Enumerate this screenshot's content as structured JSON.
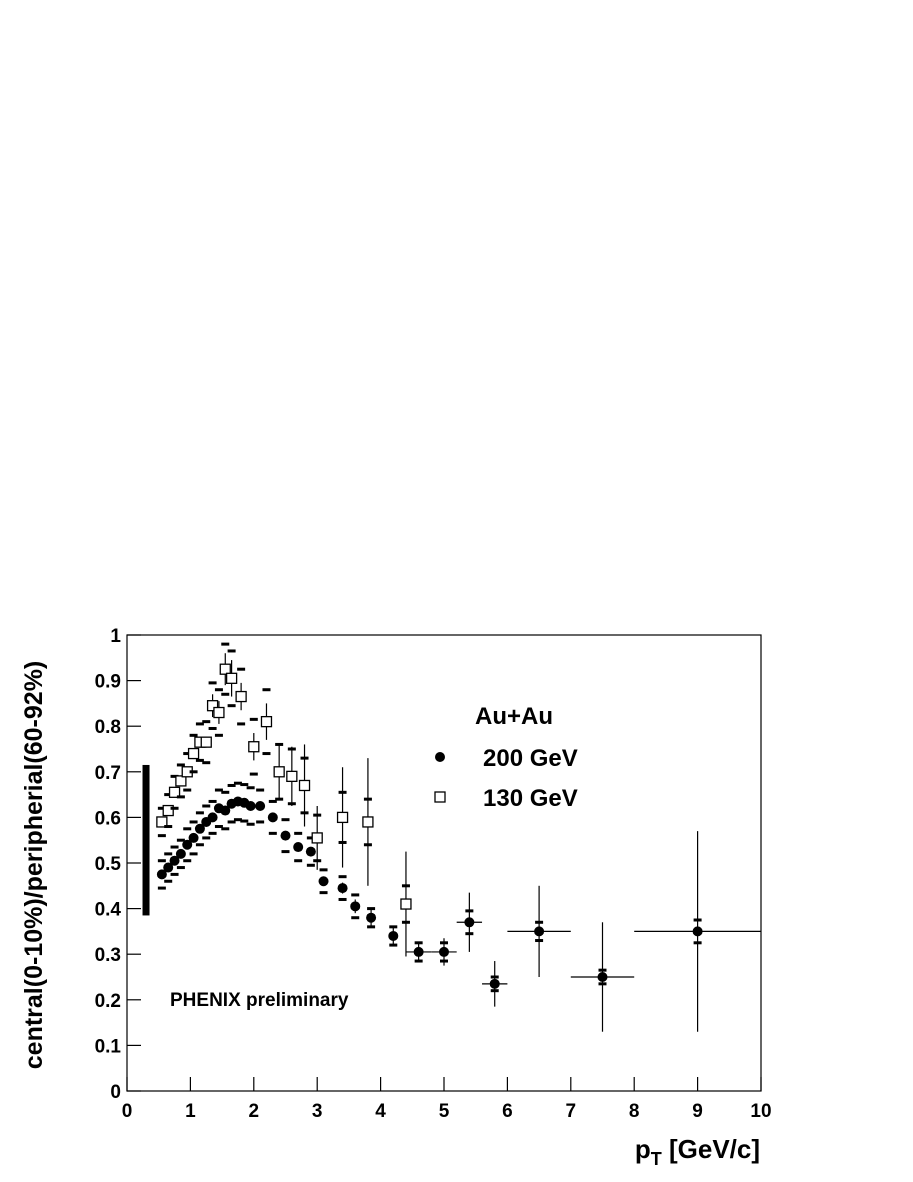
{
  "chart_data": {
    "type": "errorbar",
    "x_label": {
      "main": "p",
      "sub": "T",
      "rest": " [GeV/c]"
    },
    "y_label": "central(0-10%)/peripherial(60-92%)",
    "xlim": [
      0,
      10
    ],
    "ylim": [
      0,
      1
    ],
    "xticks": [
      0,
      1,
      2,
      3,
      4,
      5,
      6,
      7,
      8,
      9,
      10
    ],
    "yticks": [
      0,
      0.1,
      0.2,
      0.3,
      0.4,
      0.5,
      0.6,
      0.7,
      0.8,
      0.9,
      1
    ],
    "legend_title": "Au+Au",
    "annotation": "PHENIX preliminary",
    "normalization_band": {
      "x": 0.3,
      "low": 0.385,
      "high": 0.715
    },
    "series": [
      {
        "name": "200 GeV",
        "marker": "circle",
        "color": "#000000",
        "x": [
          0.55,
          0.65,
          0.75,
          0.85,
          0.95,
          1.05,
          1.15,
          1.25,
          1.35,
          1.45,
          1.55,
          1.65,
          1.75,
          1.85,
          1.95,
          2.1,
          2.3,
          2.5,
          2.7,
          2.9,
          3.1,
          3.4,
          3.6,
          3.85,
          4.2,
          4.6,
          5.0,
          5.4,
          5.8,
          6.5,
          7.5,
          9.0
        ],
        "values": [
          0.475,
          0.49,
          0.505,
          0.52,
          0.54,
          0.555,
          0.575,
          0.59,
          0.6,
          0.62,
          0.615,
          0.63,
          0.635,
          0.632,
          0.625,
          0.625,
          0.6,
          0.56,
          0.535,
          0.525,
          0.46,
          0.445,
          0.405,
          0.38,
          0.34,
          0.305,
          0.305,
          0.37,
          0.235,
          0.35,
          0.25,
          0.35
        ],
        "errors": [
          0.005,
          0.005,
          0.005,
          0.005,
          0.005,
          0.005,
          0.005,
          0.005,
          0.005,
          0.005,
          0.005,
          0.005,
          0.005,
          0.005,
          0.005,
          0.005,
          0.005,
          0.005,
          0.005,
          0.008,
          0.01,
          0.012,
          0.015,
          0.018,
          0.02,
          0.02,
          0.03,
          0.065,
          0.05,
          0.1,
          0.12,
          0.22
        ],
        "sys": [
          0.03,
          0.03,
          0.03,
          0.03,
          0.035,
          0.035,
          0.035,
          0.035,
          0.035,
          0.04,
          0.04,
          0.04,
          0.04,
          0.04,
          0.04,
          0.035,
          0.035,
          0.035,
          0.03,
          0.03,
          0.025,
          0.025,
          0.025,
          0.02,
          0.02,
          0.02,
          0.02,
          0.025,
          0.015,
          0.02,
          0.015,
          0.025
        ],
        "xerr": [
          null,
          null,
          null,
          null,
          null,
          null,
          null,
          null,
          null,
          null,
          null,
          null,
          null,
          null,
          null,
          null,
          null,
          null,
          null,
          null,
          null,
          null,
          null,
          null,
          null,
          0.2,
          0.2,
          0.2,
          0.2,
          0.5,
          0.5,
          1.0
        ]
      },
      {
        "name": "130 GeV",
        "marker": "square",
        "color": "#000000",
        "x": [
          0.55,
          0.65,
          0.75,
          0.85,
          0.95,
          1.05,
          1.15,
          1.25,
          1.35,
          1.45,
          1.55,
          1.65,
          1.8,
          2.0,
          2.2,
          2.4,
          2.6,
          2.8,
          3.0,
          3.4,
          3.8,
          4.4
        ],
        "values": [
          0.59,
          0.615,
          0.655,
          0.68,
          0.7,
          0.74,
          0.765,
          0.765,
          0.845,
          0.83,
          0.925,
          0.905,
          0.865,
          0.755,
          0.81,
          0.7,
          0.69,
          0.67,
          0.555,
          0.6,
          0.59,
          0.41
        ],
        "errors": [
          0.008,
          0.008,
          0.01,
          0.01,
          0.01,
          0.012,
          0.012,
          0.012,
          0.025,
          0.025,
          0.035,
          0.04,
          0.03,
          0.03,
          0.04,
          0.06,
          0.065,
          0.09,
          0.07,
          0.11,
          0.14,
          0.115
        ],
        "sys": [
          0.03,
          0.035,
          0.035,
          0.035,
          0.04,
          0.04,
          0.04,
          0.045,
          0.05,
          0.05,
          0.055,
          0.06,
          0.06,
          0.06,
          0.07,
          0.06,
          0.06,
          0.06,
          0.05,
          0.055,
          0.05,
          0.04
        ]
      }
    ]
  }
}
